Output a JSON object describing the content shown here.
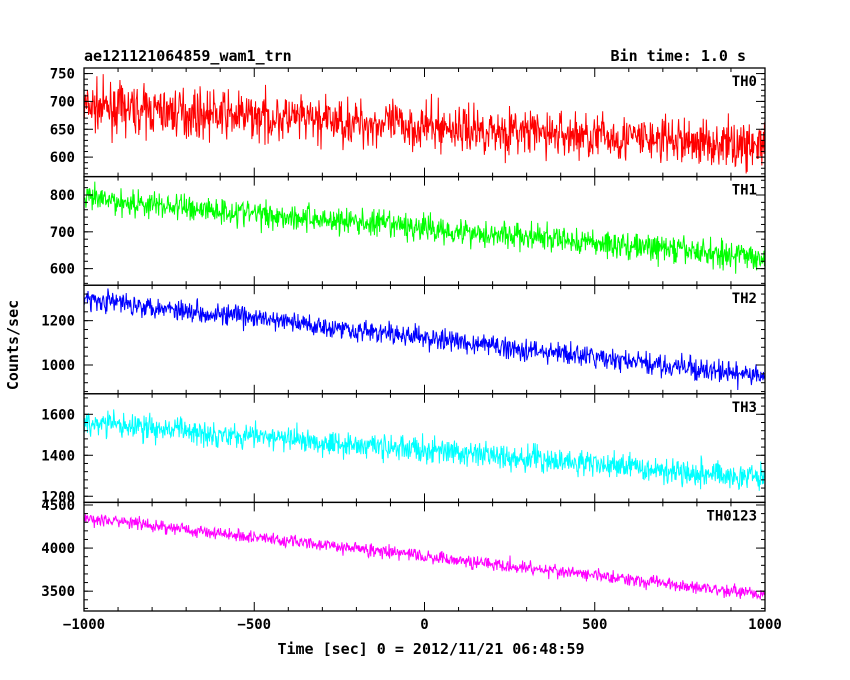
{
  "chart_data": {
    "type": "line",
    "title_left": "ae121121064859_wam1_trn",
    "title_right": "Bin time: 1.0 s",
    "xlabel": "Time [sec] 0 = 2012/11/21 06:48:59",
    "ylabel": "Counts/sec",
    "xlim": [
      -1000,
      1000
    ],
    "x_ticks": [
      -1000,
      -500,
      0,
      500,
      1000
    ],
    "x_tick_labels": [
      "−1000",
      "−500",
      "0",
      "500",
      "1000"
    ],
    "panels": [
      {
        "name": "TH0",
        "color": "#ff0000",
        "ylim": [
          565,
          760
        ],
        "y_ticks": [
          600,
          650,
          700,
          750
        ],
        "trend_start": 690,
        "trend_end": 620,
        "noise": 30
      },
      {
        "name": "TH1",
        "color": "#00ff00",
        "ylim": [
          555,
          850
        ],
        "y_ticks": [
          600,
          700,
          800
        ],
        "trend_start": 790,
        "trend_end": 630,
        "noise": 27
      },
      {
        "name": "TH2",
        "color": "#0000ff",
        "ylim": [
          870,
          1360
        ],
        "y_ticks": [
          1000,
          1200
        ],
        "trend_start": 1300,
        "trend_end": 945,
        "noise": 35
      },
      {
        "name": "TH3",
        "color": "#00ffff",
        "ylim": [
          1170,
          1700
        ],
        "y_ticks": [
          1200,
          1400,
          1600
        ],
        "trend_start": 1560,
        "trend_end": 1290,
        "noise": 45
      },
      {
        "name": "TH0123",
        "color": "#ff00ff",
        "ylim": [
          3270,
          4530
        ],
        "y_ticks": [
          3500,
          4000,
          4500
        ],
        "trend_start": 4350,
        "trend_end": 3460,
        "noise": 55
      }
    ]
  }
}
